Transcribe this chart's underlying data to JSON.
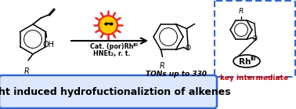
{
  "bg_color": "#ffffff",
  "banner_text": "light induced hydrofuctionaliztion of alkenes",
  "banner_bg": "#dde8ff",
  "banner_border": "#3366cc",
  "banner_text_color": "#000000",
  "banner_fontsize": 9.0,
  "cat_line1": "Cat. (por)Rh",
  "cat_superscript": "III",
  "cat_line2": "HNEt₂, r. t.",
  "tons_text": "TONs up to 330",
  "key_text": "key intermediate",
  "key_color": "#cc0000",
  "box_border": "#3366cc",
  "sun_color": "#ee2222",
  "sun_face": "#ffcc00",
  "rh_label": "Rh",
  "rh_super": "III",
  "fig_width": 3.78,
  "fig_height": 1.39,
  "dpi": 100
}
